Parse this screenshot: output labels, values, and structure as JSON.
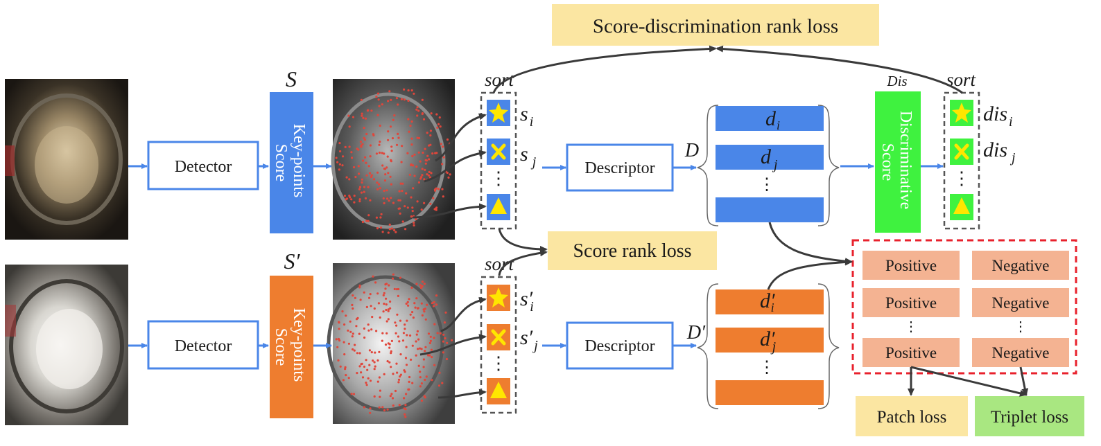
{
  "score_disc_rank_loss": "Score-discrimination rank loss",
  "score_rank_loss": "Score rank loss",
  "patch_loss": "Patch loss",
  "triplet_loss": "Triplet loss",
  "top": {
    "detector": "Detector",
    "score_symbol": "S",
    "score_block": [
      "Key-points",
      "Score"
    ],
    "sort_label": "sort",
    "s_i": {
      "base": "s",
      "sub": "i"
    },
    "s_j": {
      "base": "s",
      "sub": "j"
    },
    "ellipsis": "⋮",
    "descriptor": "Descriptor",
    "desc_symbol": "D",
    "d_i": {
      "base": "d",
      "sub": "i"
    },
    "d_j": {
      "base": "d",
      "sub": "j"
    },
    "dis_symbol": "Dis",
    "disc_block": [
      "Discriminative",
      "Score"
    ],
    "sort2_label": "sort",
    "dis_i": {
      "base": "dis",
      "sub": "i"
    },
    "dis_j": {
      "base": "dis",
      "sub": "j"
    }
  },
  "bottom": {
    "detector": "Detector",
    "score_symbol": "S′",
    "score_block": [
      "Key-points",
      "Score"
    ],
    "sort_label": "sort",
    "s_i": {
      "base": "s′",
      "sub": "i"
    },
    "s_j": {
      "base": "s′",
      "sub": "j"
    },
    "ellipsis": "⋮",
    "descriptor": "Descriptor",
    "desc_symbol": "D′",
    "d_i": {
      "base": "d′",
      "sub": "i"
    },
    "d_j": {
      "base": "d′",
      "sub": "j"
    }
  },
  "pairs": {
    "positive": "Positive",
    "negative": "Negative",
    "ellipsis": "⋮"
  },
  "colors": {
    "blue": "#4a86e8",
    "orange": "#ee7d2f",
    "green": "#3ff23f",
    "yellow_box": "#fbe6a2",
    "green_box": "#a9e781",
    "salmon": "#f4b392",
    "symbol_yellow": "#ffe600",
    "arrow_blue": "#4a86e8",
    "arrow_dark": "#3a3a3a",
    "dashed_red": "#e8212c",
    "dashed_gray": "#555555"
  }
}
